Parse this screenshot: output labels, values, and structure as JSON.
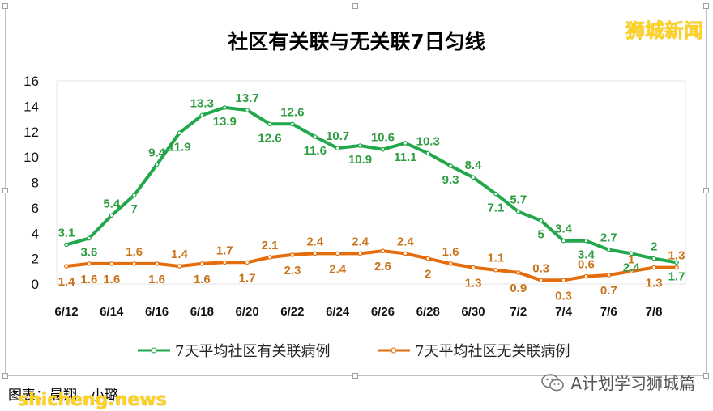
{
  "watermark": "狮城新闻",
  "footer": {
    "credit": "图表：晨翔、小璐",
    "site": "shicheng.news",
    "wechat_account": "A计划学习狮城篇"
  },
  "colors": {
    "linked": "#21a84a",
    "unlinked": "#e46c0a",
    "linked_label": "#2e9c40",
    "unlinked_label": "#c9741a"
  },
  "chart_data": {
    "type": "line",
    "title": "社区有关联与无关联7日匀线",
    "x": [
      "6/12",
      "6/13",
      "6/14",
      "6/15",
      "6/16",
      "6/17",
      "6/18",
      "6/19",
      "6/20",
      "6/21",
      "6/22",
      "6/23",
      "6/24",
      "6/25",
      "6/26",
      "6/27",
      "6/28",
      "6/29",
      "6/30",
      "7/1",
      "7/2",
      "7/3",
      "7/4",
      "7/5",
      "7/6",
      "7/7",
      "7/8",
      "7/9"
    ],
    "x_tick_labels": [
      "6/12",
      "6/14",
      "6/16",
      "6/18",
      "6/20",
      "6/22",
      "6/24",
      "6/26",
      "6/28",
      "6/30",
      "7/2",
      "7/4",
      "7/6",
      "7/8"
    ],
    "ylim": [
      0,
      16
    ],
    "yticks": [
      0,
      2,
      4,
      6,
      8,
      10,
      12,
      14,
      16
    ],
    "grid": false,
    "legend": "bottom",
    "series": [
      {
        "name": "7天平均社区有关联病例",
        "values": [
          3.1,
          3.6,
          5.4,
          7,
          9.4,
          11.9,
          13.3,
          13.9,
          13.7,
          12.6,
          12.6,
          11.6,
          10.7,
          10.9,
          10.6,
          11.1,
          10.3,
          9.3,
          8.4,
          7.1,
          5.7,
          5,
          3.4,
          3.4,
          2.7,
          2.4,
          2,
          1.7
        ],
        "labels": [
          "3.1",
          "3.6",
          "5.4",
          "7",
          "9.4",
          "11.9",
          "13.3",
          "13.9",
          "13.7",
          "12.6",
          "12.6",
          "11.6",
          "10.7",
          "10.9",
          "10.6",
          "11.1",
          "10.3",
          "9.3",
          "8.4",
          "7.1",
          "5.7",
          "5",
          "3.4",
          "3.4",
          "2.7",
          "2.4",
          "2",
          "1.7"
        ]
      },
      {
        "name": "7天平均社区无关联病例",
        "values": [
          1.4,
          1.6,
          1.6,
          1.6,
          1.6,
          1.4,
          1.6,
          1.7,
          1.7,
          2.1,
          2.3,
          2.4,
          2.4,
          2.4,
          2.6,
          2.4,
          2,
          1.6,
          1.3,
          1.1,
          0.9,
          0.3,
          0.3,
          0.6,
          0.7,
          1,
          1.3,
          1.3
        ],
        "labels": [
          "1.4",
          "1.6",
          "1.6",
          "1.6",
          "1.6",
          "1.4",
          "1.6",
          "1.7",
          "1.7",
          "2.1",
          "2.3",
          "2.4",
          "2.4",
          "2.4",
          "2.6",
          "2.4",
          "2",
          "1.6",
          "1.3",
          "1.1",
          "0.9",
          "0.3",
          "0.3",
          "0.6",
          "0.7",
          "1",
          "1.3",
          "1.3"
        ]
      }
    ]
  }
}
